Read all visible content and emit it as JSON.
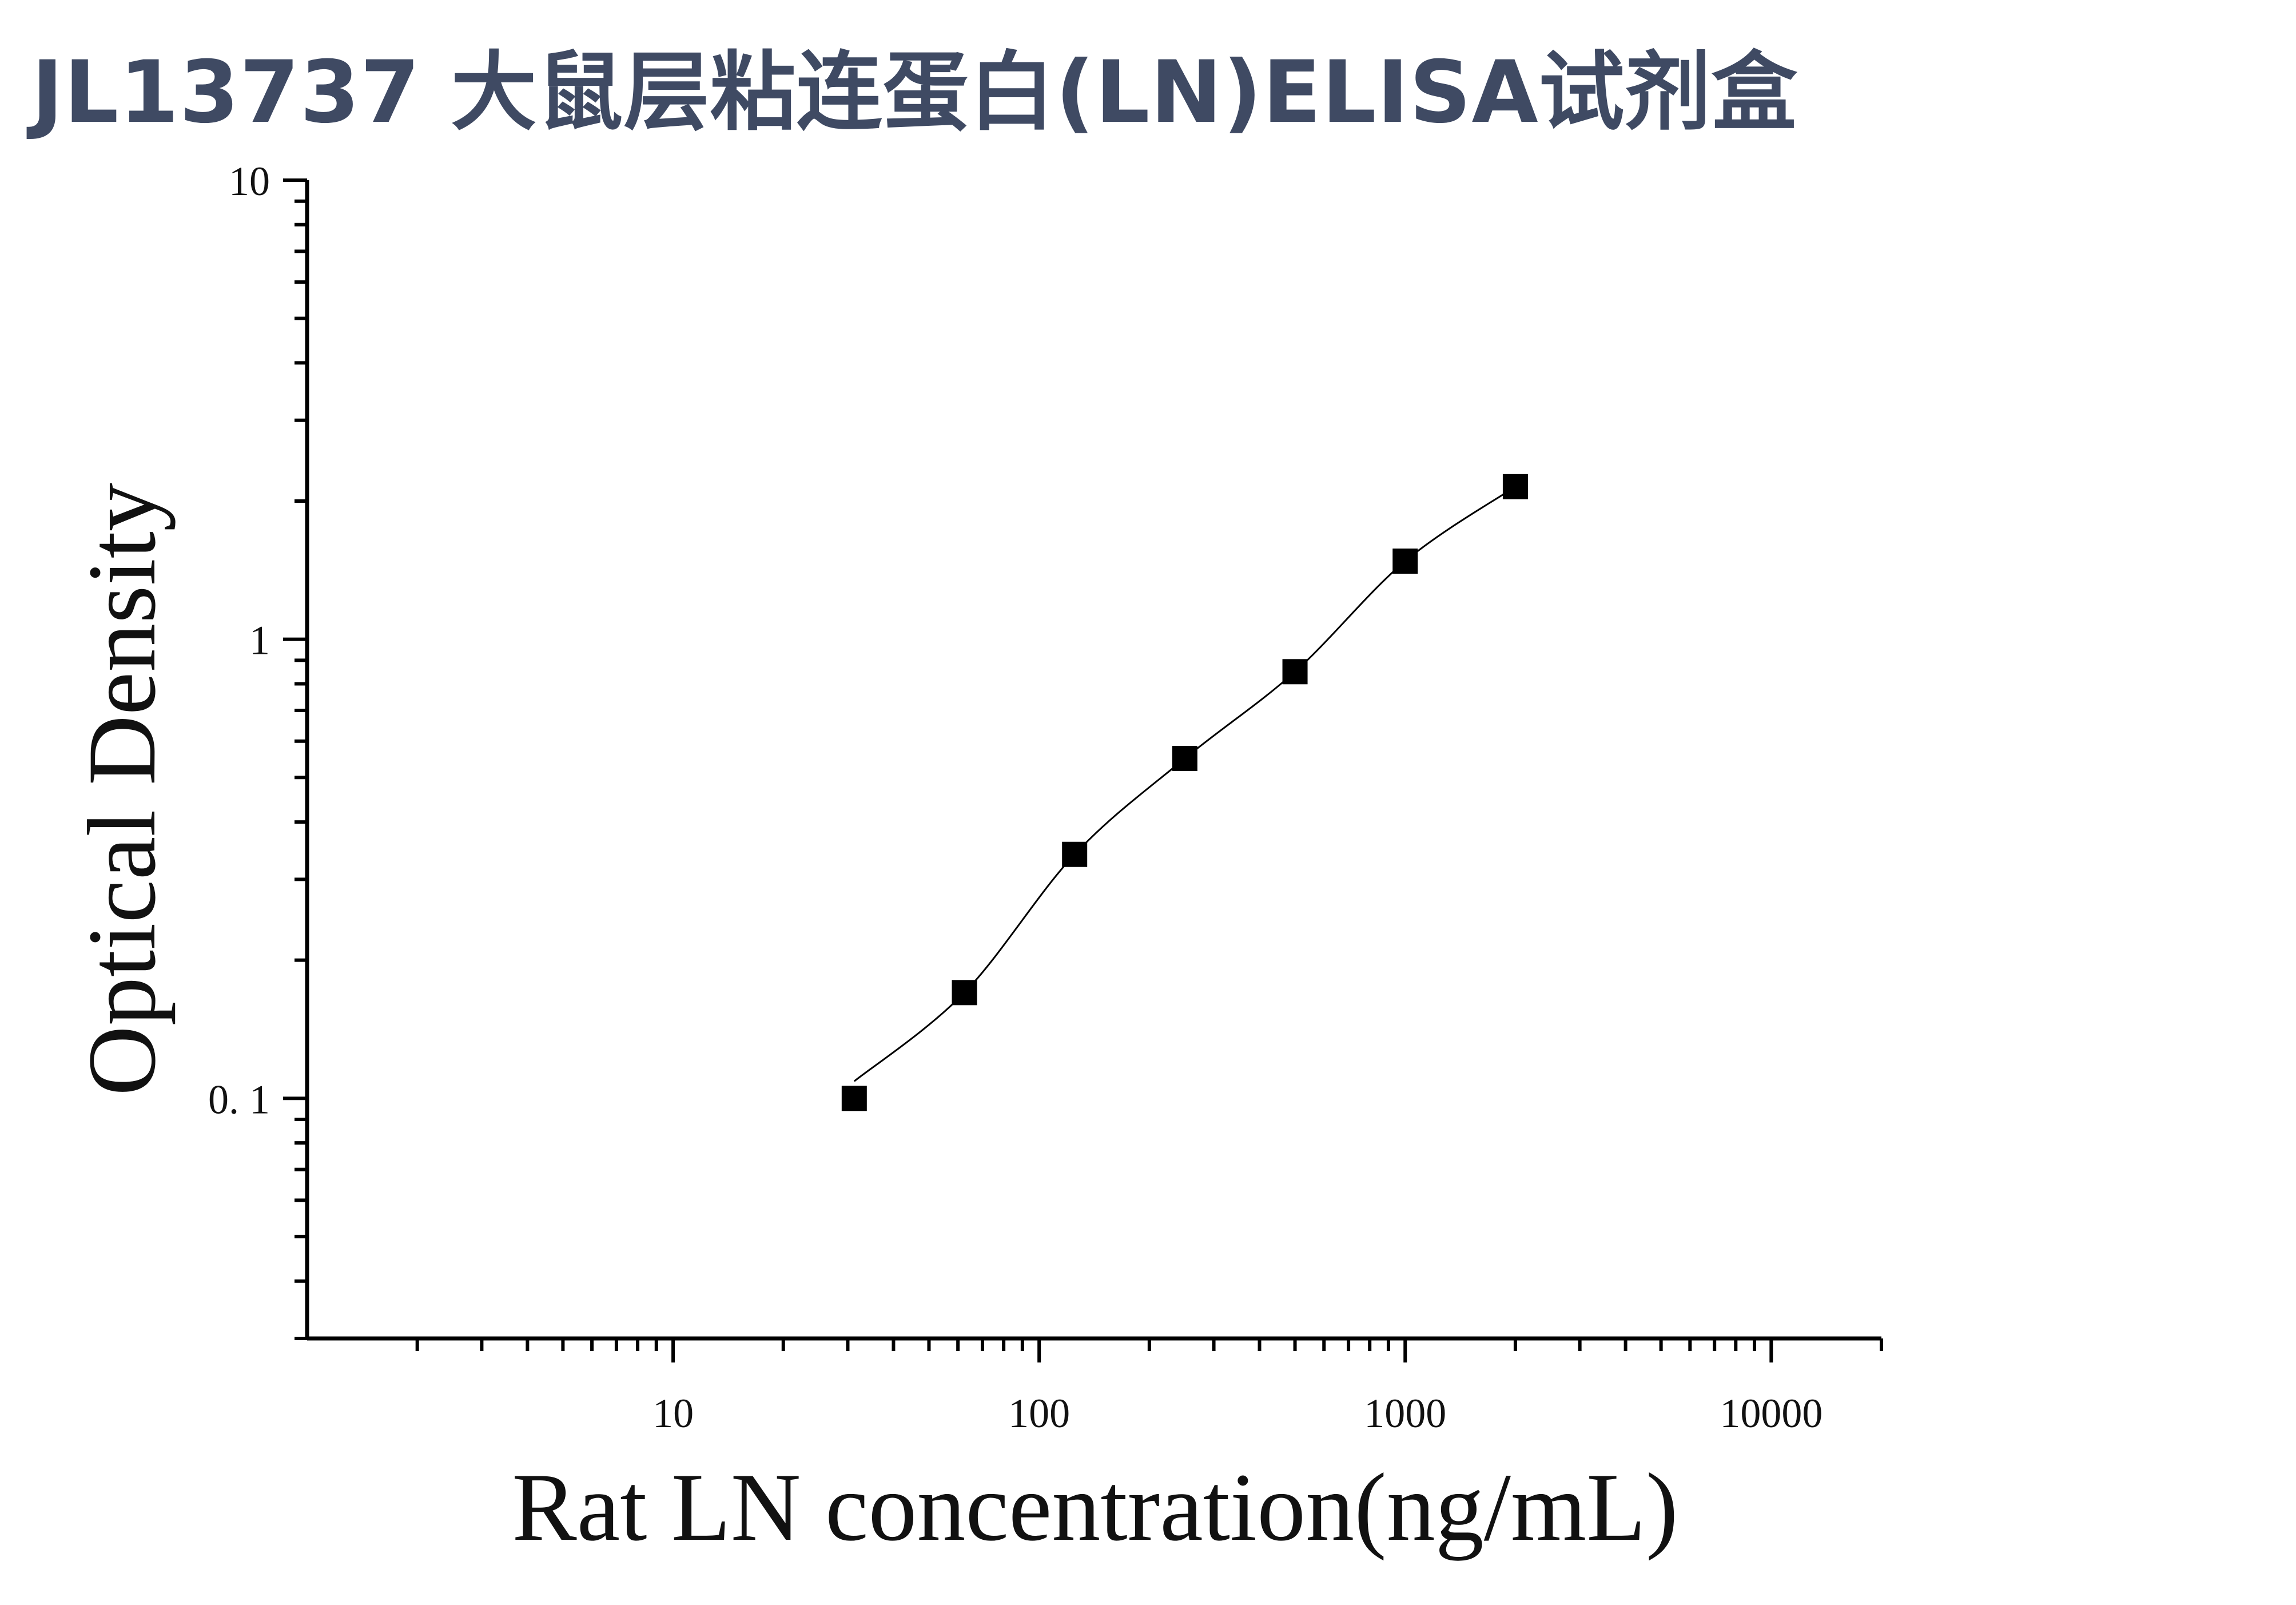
{
  "chart_data": {
    "type": "scatter",
    "title": "JL13737 大鼠层粘连蛋白(LN)ELISA试剂盒",
    "xlabel": "Rat LN concentration(ng/mL)",
    "ylabel": "Optical Density",
    "x_scale": "log",
    "y_scale": "log",
    "xlim": [
      1,
      20000
    ],
    "ylim": [
      0.03,
      10
    ],
    "x_ticks": [
      10,
      100,
      1000,
      10000
    ],
    "x_tick_labels": [
      "10",
      "100",
      "1000",
      "10000"
    ],
    "y_ticks": [
      0.1,
      1,
      10
    ],
    "y_tick_labels": [
      "0. 1",
      "1",
      "10"
    ],
    "grid": false,
    "legend": "none",
    "marker_color": "#000000",
    "line_color": "#000000",
    "series": [
      {
        "x": [
          31.25,
          62.5,
          125,
          250,
          500,
          1000,
          2000
        ],
        "y": [
          0.1,
          0.17,
          0.34,
          0.55,
          0.85,
          1.48,
          2.15
        ]
      }
    ]
  }
}
